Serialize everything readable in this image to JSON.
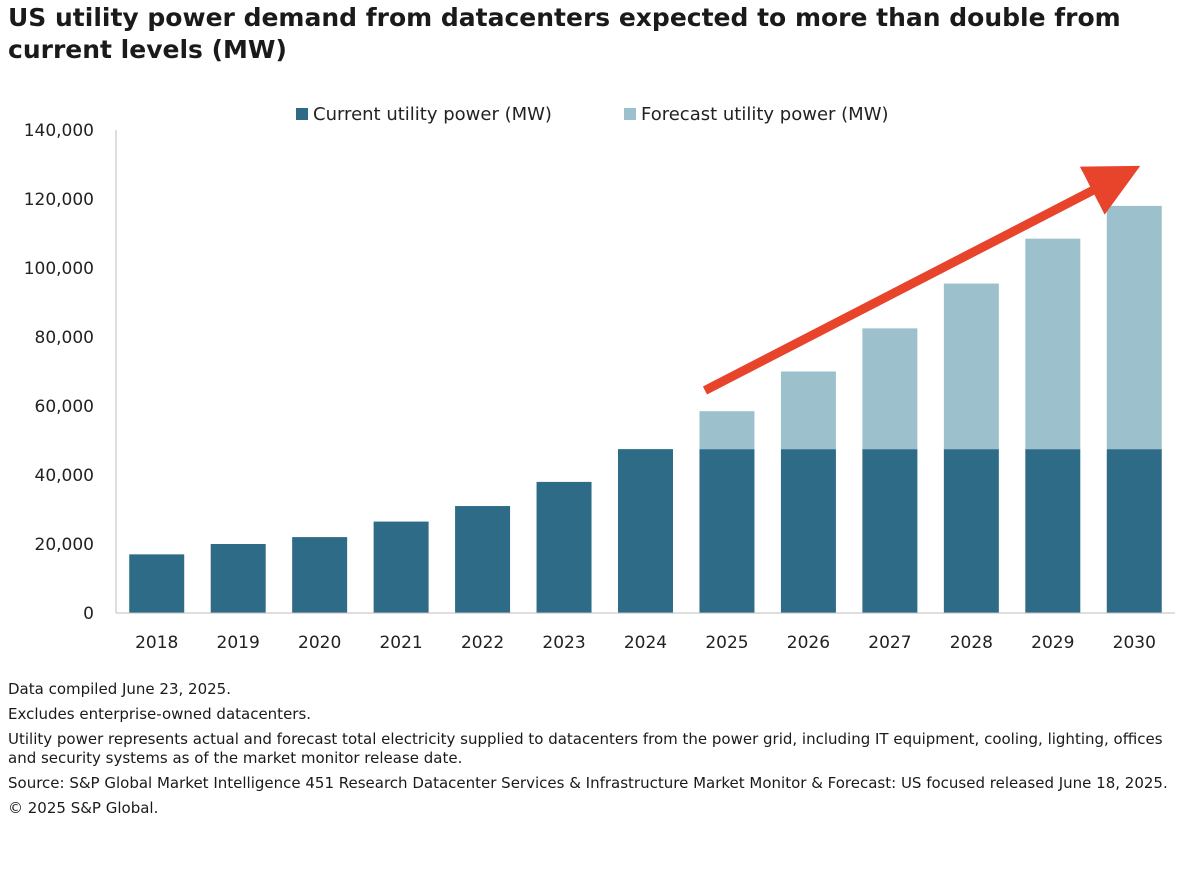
{
  "title": "US utility power demand from datacenters expected to more than double from current levels (MW)",
  "chart_data": {
    "type": "bar",
    "stacked": true,
    "title": "US utility power demand from datacenters expected to more than double from current levels (MW)",
    "categories": [
      "2018",
      "2019",
      "2020",
      "2021",
      "2022",
      "2023",
      "2024",
      "2025",
      "2026",
      "2027",
      "2028",
      "2029",
      "2030"
    ],
    "series": [
      {
        "name": "Current utility power (MW)",
        "color": "#2e6b87",
        "values": [
          17000,
          20000,
          22000,
          26500,
          31000,
          38000,
          47500,
          47500,
          47500,
          47500,
          47500,
          47500,
          47500
        ]
      },
      {
        "name": "Forecast utility power (MW)",
        "color": "#9dc0cd",
        "values": [
          0,
          0,
          0,
          0,
          0,
          0,
          0,
          11000,
          22500,
          35000,
          48000,
          61000,
          70500
        ]
      }
    ],
    "yticks": [
      "0",
      "20,000",
      "40,000",
      "60,000",
      "80,000",
      "100,000",
      "120,000",
      "140,000"
    ],
    "ylim": [
      0,
      140000
    ],
    "xlabel": "",
    "ylabel": "",
    "legend": "top-center",
    "annotation": {
      "type": "arrow",
      "color": "#e8432b",
      "description": "upward trend arrow from 2025 to 2030"
    }
  },
  "notes": [
    "Data compiled June 23, 2025.",
    "Excludes enterprise-owned datacenters.",
    "Utility power represents actual and forecast total electricity supplied to datacenters from the power grid, including IT equipment, cooling, lighting, offices and security systems as of the market monitor release date.",
    "Source: S&P Global Market Intelligence 451 Research Datacenter Services & Infrastructure Market Monitor & Forecast: US focused released June 18, 2025.",
    "© 2025 S&P Global."
  ]
}
